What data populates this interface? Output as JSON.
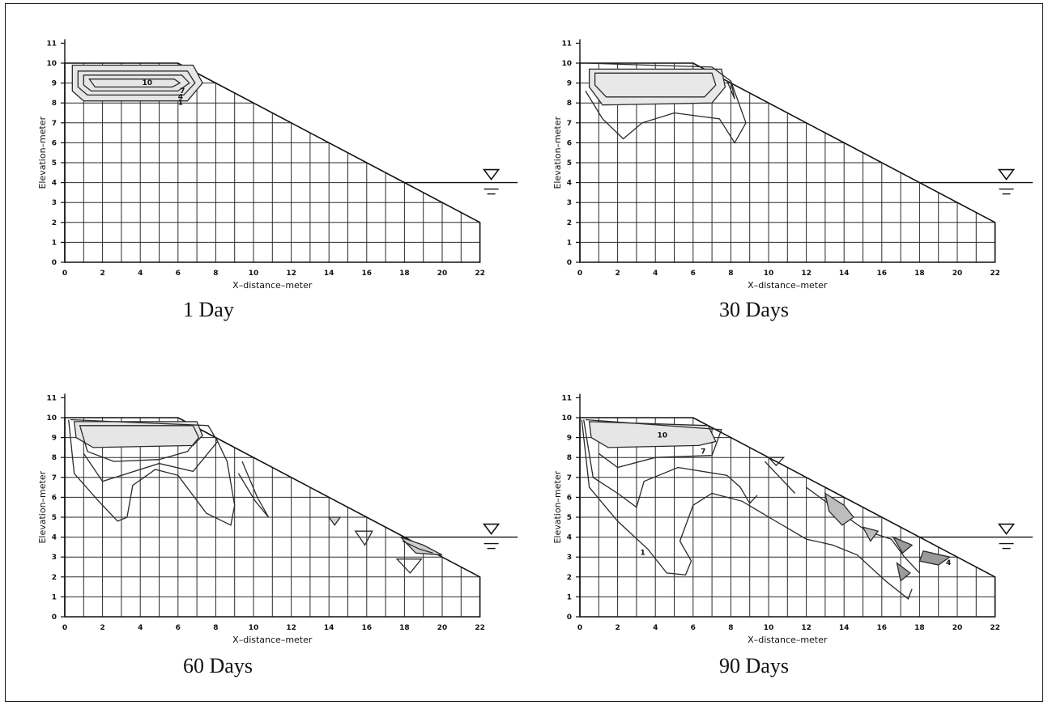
{
  "panels": [
    {
      "id": "p1",
      "caption": "1 Day",
      "y_axis_label": "Elevation–meter",
      "x_axis_label": "X–distance–meter",
      "y_ticks": [
        "0",
        "1",
        "2",
        "3",
        "4",
        "5",
        "6",
        "7",
        "8",
        "9",
        "10",
        "11"
      ],
      "x_ticks": [
        "0",
        "2",
        "4",
        "6",
        "8",
        "10",
        "12",
        "14",
        "16",
        "18",
        "20",
        "22"
      ],
      "contour_labels": [
        "10",
        "7",
        "4",
        "1"
      ]
    },
    {
      "id": "p2",
      "caption": "30 Days",
      "y_axis_label": "Elevation–meter",
      "x_axis_label": "X–distance–meter",
      "y_ticks": [
        "0",
        "1",
        "2",
        "3",
        "4",
        "5",
        "6",
        "7",
        "8",
        "9",
        "10",
        "11"
      ],
      "x_ticks": [
        "0",
        "2",
        "4",
        "6",
        "8",
        "10",
        "12",
        "14",
        "16",
        "18",
        "20",
        "22"
      ],
      "contour_labels": []
    },
    {
      "id": "p3",
      "caption": "60 Days",
      "y_axis_label": "Elevation–meter",
      "x_axis_label": "X–distance–meter",
      "y_ticks": [
        "0",
        "1",
        "2",
        "3",
        "4",
        "5",
        "6",
        "7",
        "8",
        "9",
        "10",
        "11"
      ],
      "x_ticks": [
        "0",
        "2",
        "4",
        "6",
        "8",
        "10",
        "12",
        "14",
        "16",
        "18",
        "20",
        "22"
      ],
      "contour_labels": []
    },
    {
      "id": "p4",
      "caption": "90 Days",
      "y_axis_label": "Elevation–meter",
      "x_axis_label": "X–distance–meter",
      "y_ticks": [
        "0",
        "1",
        "2",
        "3",
        "4",
        "5",
        "6",
        "7",
        "8",
        "9",
        "10",
        "11"
      ],
      "x_ticks": [
        "0",
        "2",
        "4",
        "6",
        "8",
        "10",
        "12",
        "14",
        "16",
        "18",
        "20",
        "22"
      ],
      "contour_labels": [
        "10",
        "7",
        "4",
        "1"
      ]
    }
  ],
  "water_level_elevation": 4
}
